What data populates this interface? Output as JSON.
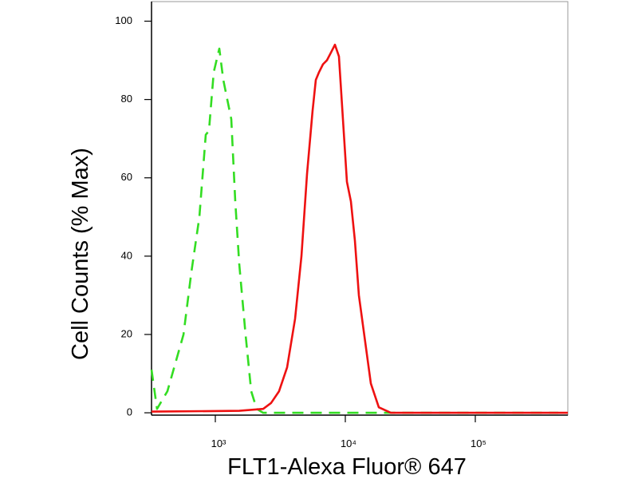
{
  "chart_data": {
    "type": "line",
    "x_label": "FLT1-Alexa Fluor® 647",
    "y_label": "Cell Counts (% Max)",
    "x_scale": "log",
    "xlim": [
      323,
      515000
    ],
    "ylim": [
      -0.6,
      105
    ],
    "xticks": [
      {
        "value": 1000,
        "label": "10³"
      },
      {
        "value": 10000,
        "label": "10⁴"
      },
      {
        "value": 100000,
        "label": "10⁵"
      }
    ],
    "yticks": [
      0,
      20,
      40,
      60,
      80,
      100
    ],
    "grid": false,
    "series": [
      {
        "color": "#33dd22",
        "line_style": "dashed",
        "x": [
          323,
          356,
          428,
          569,
          655,
          754,
          844,
          893,
          972,
          1073,
          1152,
          1326,
          1423,
          1527,
          1709,
          1889,
          2083,
          2333,
          10000,
          100000,
          434000
        ],
        "values": [
          11,
          1,
          5.5,
          20,
          36,
          50,
          71,
          72,
          87,
          93,
          85,
          75,
          54,
          38,
          20,
          5.5,
          1,
          0,
          0,
          0,
          0
        ]
      },
      {
        "color": "#ee1111",
        "line_style": "solid",
        "x": [
          323,
          1527,
          2333,
          2686,
          3094,
          3565,
          4105,
          4600,
          5080,
          5600,
          5930,
          6280,
          6730,
          7220,
          7760,
          8320,
          8930,
          9590,
          10290,
          11040,
          11850,
          12710,
          14230,
          15710,
          18100,
          22400,
          515000
        ],
        "values": [
          0.3,
          0.5,
          1,
          2.5,
          5.5,
          11.6,
          24,
          40,
          61,
          77,
          85,
          87,
          89,
          90,
          92,
          94,
          91,
          75,
          59,
          54,
          44,
          30,
          18,
          7.5,
          1.4,
          0,
          0
        ]
      }
    ]
  }
}
